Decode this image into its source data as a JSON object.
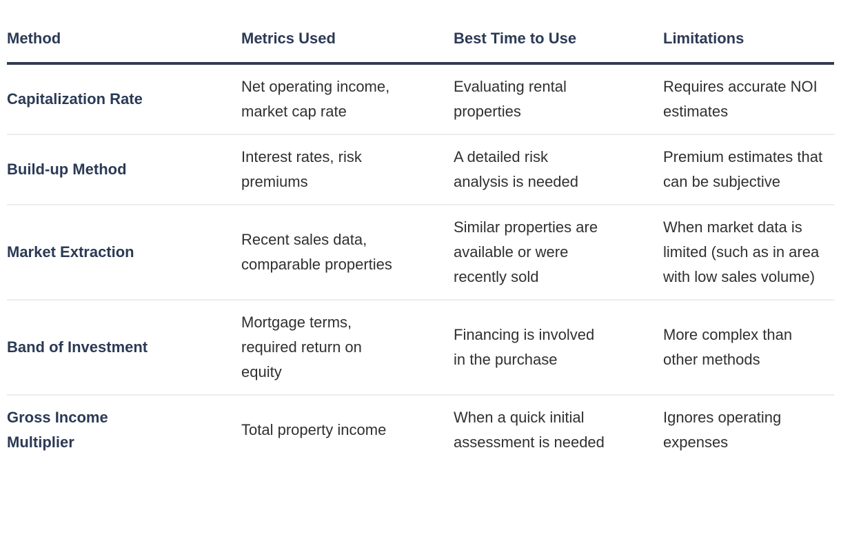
{
  "table": {
    "columns": [
      "Method",
      "Metrics Used",
      "Best Time to Use",
      "Limitations"
    ],
    "rows": [
      {
        "method": "Capitalization Rate",
        "metrics": "Net operating income, market cap rate",
        "best_time": "Evaluating rental properties",
        "limitations": "Requires accurate NOI estimates"
      },
      {
        "method": "Build-up Method",
        "metrics": "Interest rates, risk premiums",
        "best_time": "A detailed risk analysis is needed",
        "limitations": "Premium estimates that can be subjective"
      },
      {
        "method": "Market Extraction",
        "metrics": "Recent sales data, comparable properties",
        "best_time": "Similar properties are available or were recently sold",
        "limitations": "When market data is limited (such as in area with low sales volume)"
      },
      {
        "method": "Band of Investment",
        "metrics": "Mortgage terms, required return on equity",
        "best_time": "Financing is involved in the purchase",
        "limitations": "More complex than other methods"
      },
      {
        "method": "Gross Income Multiplier",
        "metrics": "Total property income",
        "best_time": "When a quick initial assessment is needed",
        "limitations": "Ignores operating expenses"
      }
    ]
  },
  "colors": {
    "header_text": "#2b3a55",
    "header_rule": "#313c52",
    "method_text": "#2b3a55",
    "body_text": "#303030",
    "row_divider": "#ededed",
    "background": "#ffffff"
  }
}
